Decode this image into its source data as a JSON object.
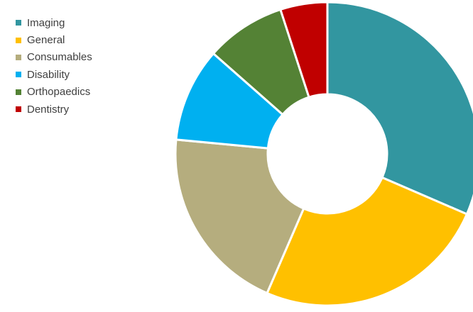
{
  "chart_data": {
    "type": "pie",
    "variant": "donut",
    "legend": "left",
    "categories": [
      "Imaging",
      "General",
      "Consumables",
      "Disability",
      "Orthopaedics",
      "Dentistry"
    ],
    "values": [
      31.5,
      25,
      20,
      10,
      8.5,
      5
    ],
    "colors": [
      "#3296A0",
      "#FFC000",
      "#B5AD7E",
      "#00B0F0",
      "#548235",
      "#C00000"
    ],
    "start_angle_deg": 0,
    "direction": "clockwise"
  }
}
